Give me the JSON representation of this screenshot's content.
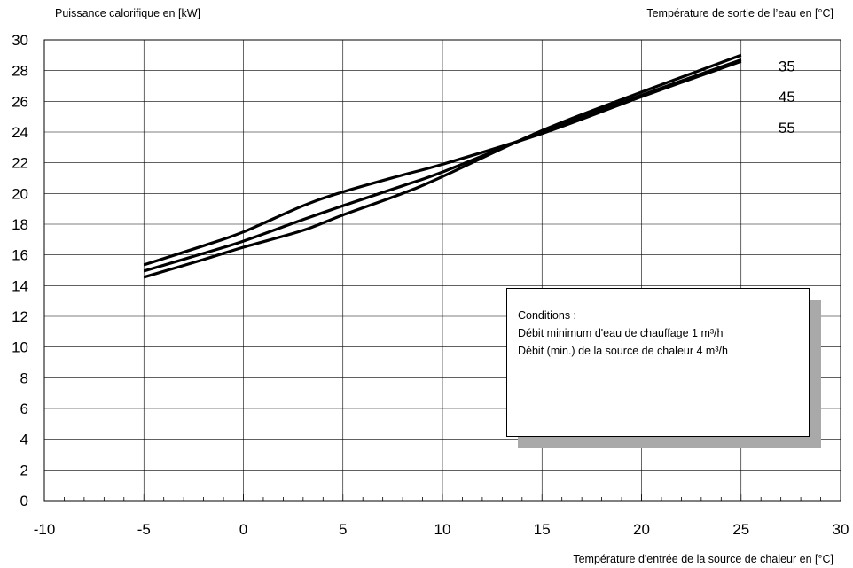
{
  "chart_data": {
    "type": "line",
    "ylabel": "Puissance calorifique en [kW]",
    "xlabel": "Température d'entrée de la source de chaleur en [°C]",
    "legend_title": "Température de sortie de l’eau en [°C]",
    "xlim": [
      -10,
      30
    ],
    "ylim": [
      0,
      30
    ],
    "x_ticks": [
      -10,
      -5,
      0,
      5,
      10,
      15,
      20,
      25,
      30
    ],
    "y_ticks": [
      0,
      2,
      4,
      6,
      8,
      10,
      12,
      14,
      16,
      18,
      20,
      22,
      24,
      26,
      28,
      30
    ],
    "grid": true,
    "series": [
      {
        "name": "35",
        "x": [
          -5,
          -2,
          0,
          3,
          5,
          8,
          10,
          15,
          20,
          25
        ],
        "y": [
          15.35,
          16.6,
          17.5,
          19.2,
          20.1,
          21.2,
          21.9,
          23.9,
          26.3,
          28.6
        ]
      },
      {
        "name": "45",
        "x": [
          -5,
          -2,
          0,
          3,
          5,
          8,
          10,
          15,
          20,
          25
        ],
        "y": [
          14.95,
          16.1,
          16.9,
          18.3,
          19.2,
          20.5,
          21.4,
          24.0,
          26.4,
          28.7
        ]
      },
      {
        "name": "55",
        "x": [
          -5,
          -2,
          0,
          3,
          5,
          8,
          10,
          15,
          20,
          25
        ],
        "y": [
          14.55,
          15.7,
          16.5,
          17.6,
          18.6,
          20.0,
          21.1,
          24.1,
          26.6,
          29.0
        ]
      }
    ],
    "annotation": {
      "title": "Conditions :",
      "lines": [
        "Débit minimum d'eau de chauffage 1 m³/h",
        "Débit (min.) de la source de chaleur 4 m³/h"
      ]
    }
  }
}
